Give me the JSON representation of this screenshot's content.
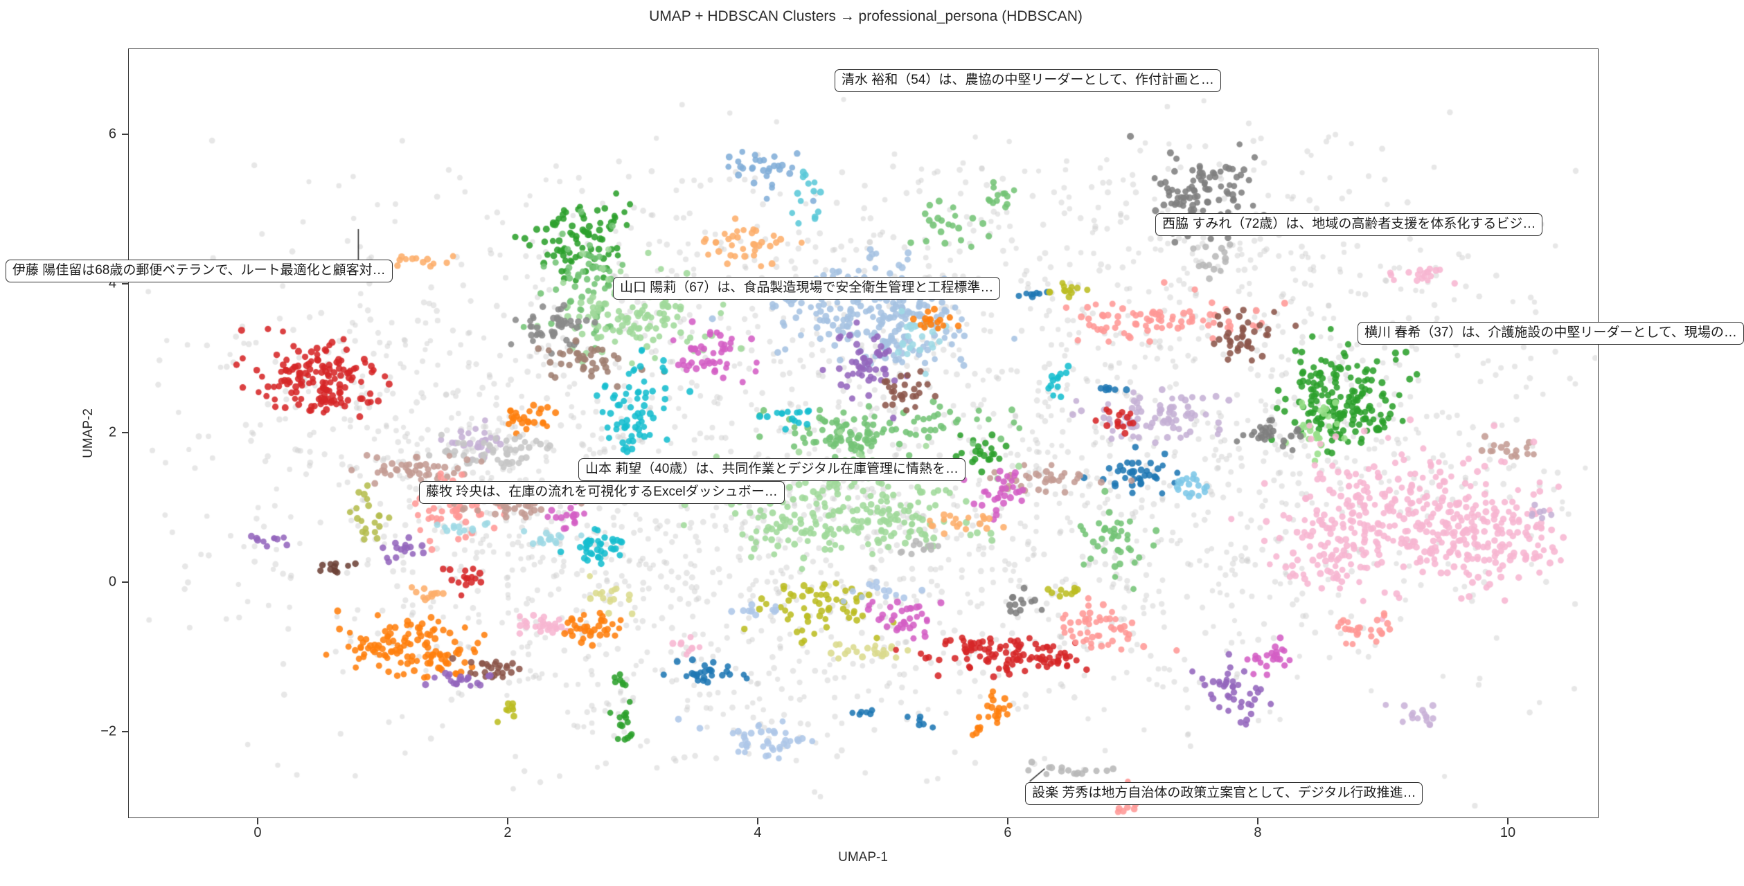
{
  "chart_data": {
    "type": "scatter",
    "title": "UMAP + HDBSCAN Clusters → professional_persona (HDBSCAN)",
    "xlabel": "UMAP-1",
    "ylabel": "UMAP-2",
    "xlim": [
      -1.036,
      10.726
    ],
    "ylim": [
      -3.161,
      7.151
    ],
    "xticks": [
      0,
      2,
      4,
      6,
      8,
      10
    ],
    "yticks": [
      6,
      4,
      2,
      0,
      -2
    ],
    "grid": false,
    "legend": "none",
    "noise": {
      "color": "#cfcfcf",
      "blobs_key": [
        "x",
        "y",
        "sx",
        "sy",
        "n"
      ],
      "blobs": [
        [
          4.5,
          2.1,
          2.3,
          1.5,
          750
        ],
        [
          2.6,
          0.4,
          1.5,
          1.1,
          420
        ],
        [
          6.3,
          0.1,
          1.6,
          1.1,
          380
        ],
        [
          8.6,
          2.4,
          1.2,
          1.4,
          300
        ],
        [
          5.0,
          4.4,
          1.9,
          0.8,
          230
        ],
        [
          1.2,
          2.2,
          0.9,
          1.0,
          160
        ],
        [
          7.5,
          4.6,
          0.8,
          0.7,
          90
        ],
        [
          3.6,
          -1.6,
          1.2,
          0.5,
          110
        ]
      ],
      "uniform": {
        "n": 200,
        "x": [
          -0.6,
          10.6
        ],
        "y": [
          -2.7,
          6.0
        ]
      }
    },
    "clusters_key": [
      "x",
      "y",
      "sx",
      "sy",
      "n",
      "color"
    ],
    "clusters": [
      [
        2.6,
        4.6,
        0.22,
        0.28,
        85,
        "#2ca02c"
      ],
      [
        1.38,
        4.3,
        0.13,
        0.06,
        12,
        "#fdae6b"
      ],
      [
        2.62,
        3.95,
        0.15,
        0.35,
        55,
        "#74c476"
      ],
      [
        3.05,
        3.6,
        0.33,
        0.3,
        120,
        "#a1d99b"
      ],
      [
        2.37,
        3.4,
        0.16,
        0.17,
        45,
        "#8a8a8a"
      ],
      [
        2.66,
        2.95,
        0.2,
        0.13,
        40,
        "#a18072"
      ],
      [
        4.05,
        5.55,
        0.18,
        0.14,
        30,
        "#82aed8"
      ],
      [
        4.38,
        5.1,
        0.07,
        0.22,
        14,
        "#5bc8d8"
      ],
      [
        3.9,
        4.6,
        0.22,
        0.14,
        35,
        "#fdae6b"
      ],
      [
        4.88,
        3.7,
        0.42,
        0.3,
        190,
        "#a6c3e3"
      ],
      [
        5.12,
        3.25,
        0.25,
        0.18,
        60,
        "#a6c3e3"
      ],
      [
        5.55,
        4.8,
        0.18,
        0.18,
        22,
        "#74c476"
      ],
      [
        5.9,
        5.15,
        0.12,
        0.12,
        12,
        "#74c476"
      ],
      [
        7.55,
        5.3,
        0.2,
        0.28,
        95,
        "#7f7f7f"
      ],
      [
        7.6,
        4.35,
        0.07,
        0.25,
        16,
        "#b8b8b8"
      ],
      [
        3.63,
        3.05,
        0.14,
        0.2,
        45,
        "#d45fc5"
      ],
      [
        0.5,
        2.8,
        0.27,
        0.25,
        125,
        "#d62728"
      ],
      [
        0.63,
        2.42,
        0.14,
        0.1,
        25,
        "#d62728"
      ],
      [
        7.3,
        3.57,
        0.33,
        0.13,
        65,
        "#ff9896"
      ],
      [
        6.72,
        3.42,
        0.1,
        0.08,
        12,
        "#ff9896"
      ],
      [
        7.92,
        3.3,
        0.14,
        0.18,
        38,
        "#8c564b"
      ],
      [
        8.62,
        2.6,
        0.26,
        0.3,
        120,
        "#2ca02c"
      ],
      [
        8.72,
        2.12,
        0.18,
        0.18,
        55,
        "#2ca02c"
      ],
      [
        8.45,
        2.12,
        0.1,
        0.18,
        28,
        "#98df8a"
      ],
      [
        7.25,
        2.25,
        0.28,
        0.18,
        80,
        "#c5b0d5"
      ],
      [
        6.86,
        2.22,
        0.07,
        0.11,
        15,
        "#d62728"
      ],
      [
        6.8,
        2.62,
        0.08,
        0.04,
        7,
        "#1f77b4"
      ],
      [
        8.05,
        1.98,
        0.14,
        0.08,
        28,
        "#7f7f7f"
      ],
      [
        7.02,
        1.48,
        0.17,
        0.14,
        38,
        "#1f77b4"
      ],
      [
        7.45,
        1.32,
        0.09,
        0.11,
        18,
        "#7ec8e8"
      ],
      [
        10.05,
        1.8,
        0.16,
        0.05,
        16,
        "#c49c94"
      ],
      [
        9.25,
        0.95,
        0.5,
        0.42,
        280,
        "#f7b6d2"
      ],
      [
        9.85,
        0.5,
        0.33,
        0.3,
        120,
        "#f7b6d2"
      ],
      [
        8.55,
        0.35,
        0.25,
        0.25,
        70,
        "#f7b6d2"
      ],
      [
        10.25,
        0.95,
        0.05,
        0.05,
        7,
        "#c5b0d5"
      ],
      [
        6.85,
        0.55,
        0.14,
        0.28,
        40,
        "#74c476"
      ],
      [
        6.25,
        1.38,
        0.22,
        0.09,
        35,
        "#c49c94"
      ],
      [
        5.75,
        1.78,
        0.12,
        0.13,
        22,
        "#2ca02c"
      ],
      [
        5.0,
        2.08,
        0.5,
        0.15,
        85,
        "#74c476"
      ],
      [
        4.62,
        1.9,
        0.18,
        0.1,
        25,
        "#74c476"
      ],
      [
        4.6,
        1.2,
        0.48,
        0.28,
        130,
        "#a1d99b"
      ],
      [
        5.1,
        0.8,
        0.33,
        0.22,
        70,
        "#a1d99b"
      ],
      [
        4.3,
        0.62,
        0.22,
        0.18,
        50,
        "#a1d99b"
      ],
      [
        5.95,
        1.2,
        0.11,
        0.16,
        30,
        "#d45fc5"
      ],
      [
        5.62,
        0.82,
        0.14,
        0.07,
        20,
        "#fdae6b"
      ],
      [
        5.3,
        0.46,
        0.09,
        0.05,
        12,
        "#b8b8b8"
      ],
      [
        4.85,
        2.88,
        0.14,
        0.22,
        50,
        "#9467bd"
      ],
      [
        5.17,
        2.56,
        0.09,
        0.13,
        26,
        "#8c564b"
      ],
      [
        5.25,
        3.32,
        0.1,
        0.18,
        26,
        "#9edae5"
      ],
      [
        5.48,
        3.5,
        0.11,
        0.07,
        16,
        "#ff7f0e"
      ],
      [
        6.2,
        3.86,
        0.07,
        0.04,
        8,
        "#1f77b4"
      ],
      [
        6.45,
        3.92,
        0.09,
        0.07,
        12,
        "#bcbd22"
      ],
      [
        6.4,
        2.7,
        0.07,
        0.09,
        12,
        "#17becf"
      ],
      [
        4.25,
        2.22,
        0.09,
        0.07,
        15,
        "#17becf"
      ],
      [
        3.0,
        2.35,
        0.15,
        0.38,
        70,
        "#17becf"
      ],
      [
        2.15,
        2.22,
        0.11,
        0.09,
        25,
        "#ff7f0e"
      ],
      [
        1.76,
        1.88,
        0.11,
        0.11,
        26,
        "#c5b0d5"
      ],
      [
        0.1,
        0.56,
        0.11,
        0.05,
        10,
        "#9467bd"
      ],
      [
        0.6,
        0.21,
        0.09,
        0.05,
        11,
        "#6d4238"
      ],
      [
        0.85,
        0.87,
        0.07,
        0.18,
        20,
        "#b5bd4e"
      ],
      [
        1.9,
        1.78,
        0.28,
        0.11,
        50,
        "#c6c6c6"
      ],
      [
        1.25,
        1.52,
        0.22,
        0.11,
        45,
        "#c49c94"
      ],
      [
        1.55,
        0.98,
        0.16,
        0.26,
        55,
        "#ff9896"
      ],
      [
        2.05,
        1.02,
        0.22,
        0.09,
        38,
        "#c49c94"
      ],
      [
        2.42,
        0.88,
        0.09,
        0.07,
        16,
        "#d45fc5"
      ],
      [
        1.62,
        0.76,
        0.09,
        0.05,
        12,
        "#9edae5"
      ],
      [
        2.33,
        0.6,
        0.11,
        0.06,
        15,
        "#9edae5"
      ],
      [
        2.7,
        0.5,
        0.13,
        0.11,
        38,
        "#17becf"
      ],
      [
        1.15,
        0.42,
        0.09,
        0.07,
        16,
        "#9467bd"
      ],
      [
        1.65,
        0.06,
        0.07,
        0.09,
        16,
        "#d62728"
      ],
      [
        1.35,
        -0.14,
        0.07,
        0.07,
        12,
        "#fdae6b"
      ],
      [
        1.22,
        -0.82,
        0.26,
        0.2,
        95,
        "#ff7f0e"
      ],
      [
        1.48,
        -1.02,
        0.13,
        0.1,
        25,
        "#ff7f0e"
      ],
      [
        2.3,
        -0.58,
        0.14,
        0.07,
        28,
        "#f7b6d2"
      ],
      [
        2.66,
        -0.6,
        0.13,
        0.11,
        35,
        "#ff7f0e"
      ],
      [
        2.76,
        -0.18,
        0.08,
        0.09,
        16,
        "#dbdb8d"
      ],
      [
        1.86,
        -1.14,
        0.13,
        0.07,
        25,
        "#8c564b"
      ],
      [
        1.6,
        -1.3,
        0.11,
        0.07,
        20,
        "#9467bd"
      ],
      [
        2.0,
        -1.7,
        0.05,
        0.05,
        8,
        "#bcbd22"
      ],
      [
        2.9,
        -1.28,
        0.05,
        0.07,
        7,
        "#2ca02c"
      ],
      [
        2.89,
        -1.82,
        0.05,
        0.09,
        9,
        "#2ca02c"
      ],
      [
        2.95,
        -2.08,
        0.04,
        0.04,
        5,
        "#2ca02c"
      ],
      [
        4.48,
        -0.32,
        0.24,
        0.2,
        60,
        "#bcbd22"
      ],
      [
        4.95,
        -0.1,
        0.12,
        0.05,
        13,
        "#aec7e8"
      ],
      [
        3.95,
        -0.36,
        0.12,
        0.05,
        11,
        "#aec7e8"
      ],
      [
        5.15,
        -0.46,
        0.14,
        0.12,
        35,
        "#d45fc5"
      ],
      [
        4.9,
        -0.92,
        0.2,
        0.06,
        22,
        "#dbdb8d"
      ],
      [
        3.42,
        -0.9,
        0.05,
        0.06,
        9,
        "#f7b6d2"
      ],
      [
        3.56,
        -1.2,
        0.14,
        0.08,
        26,
        "#1f77b4"
      ],
      [
        5.88,
        -0.97,
        0.3,
        0.13,
        85,
        "#d62728"
      ],
      [
        6.35,
        -1.06,
        0.11,
        0.09,
        20,
        "#d62728"
      ],
      [
        6.75,
        -0.62,
        0.23,
        0.14,
        50,
        "#ff9896"
      ],
      [
        6.05,
        -0.26,
        0.07,
        0.09,
        13,
        "#7f7f7f"
      ],
      [
        6.45,
        -0.14,
        0.09,
        0.04,
        10,
        "#bcbd22"
      ],
      [
        4.05,
        -2.1,
        0.18,
        0.13,
        40,
        "#aec7e8"
      ],
      [
        4.86,
        -1.76,
        0.05,
        0.04,
        6,
        "#1f77b4"
      ],
      [
        5.3,
        -1.86,
        0.05,
        0.05,
        6,
        "#1f77b4"
      ],
      [
        5.9,
        -1.68,
        0.07,
        0.11,
        18,
        "#ff7f0e"
      ],
      [
        5.76,
        -1.96,
        0.04,
        0.04,
        6,
        "#ff7f0e"
      ],
      [
        6.5,
        -2.5,
        0.18,
        0.05,
        16,
        "#b8b8b8"
      ],
      [
        6.95,
        -3.02,
        0.05,
        0.13,
        10,
        "#ff9896"
      ],
      [
        7.82,
        -1.5,
        0.13,
        0.22,
        40,
        "#9467bd"
      ],
      [
        8.1,
        -1.02,
        0.09,
        0.11,
        22,
        "#d45fc5"
      ],
      [
        9.3,
        -1.8,
        0.11,
        0.09,
        16,
        "#c9b3d8"
      ],
      [
        8.85,
        -0.62,
        0.13,
        0.09,
        25,
        "#ff9896"
      ],
      [
        9.35,
        4.1,
        0.14,
        0.11,
        18,
        "#f7b6d2"
      ]
    ],
    "annotations": [
      {
        "text": "清水 裕和（54）は、農協の中堅リーダーとして、作付計画と…",
        "x": 4.615,
        "y": 6.874,
        "leader": null
      },
      {
        "text": "西脇 すみれ（72歳）は、地域の高齢者支援を体系化するビジ…",
        "x": 7.18,
        "y": 4.944,
        "leader": null
      },
      {
        "text": "伊藤 陽佳留は68歳の郵便ベテランで、ルート最適化と顧客対…",
        "x": -2.017,
        "y": 4.323,
        "leader": [
          [
            0.8,
            4.33
          ],
          [
            0.8,
            4.74
          ]
        ]
      },
      {
        "text": "山口 陽莉（67）は、食品製造現場で安全衛生管理と工程標準…",
        "x": 2.842,
        "y": 4.091,
        "leader": null
      },
      {
        "text": "横川 春希（37）は、介護施設の中堅リーダーとして、現場の…",
        "x": 8.798,
        "y": 3.488,
        "leader": null
      },
      {
        "text": "山本 莉望（40歳）は、共同作業とデジタル在庫管理に情熱を…",
        "x": 2.565,
        "y": 1.66,
        "leader": null
      },
      {
        "text": "藤牧 玲央は、在庫の流れを可視化するExcelダッシュボー…",
        "x": 1.291,
        "y": 1.354,
        "leader": null
      },
      {
        "text": "設楽 芳秀は地方自治体の政策立案官として、デジタル行政推進…",
        "x": 6.139,
        "y": -2.681,
        "leader": [
          [
            6.17,
            -2.66
          ],
          [
            6.29,
            -2.49
          ]
        ]
      }
    ],
    "style": {
      "noise_alpha": 0.5,
      "cluster_alpha": 0.88,
      "spine_color": "#3c3c3c",
      "annotation_border": "#2f2f2f"
    }
  }
}
